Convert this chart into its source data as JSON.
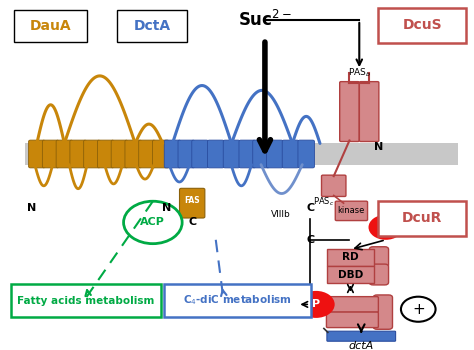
{
  "bg_color": "#ffffff",
  "membrane_color": "#c8c8c8",
  "daua_color": "#c8860a",
  "daua_ec": "#8B6008",
  "dcta_color": "#4472c4",
  "dcta_ec": "#2a4d9f",
  "pas_fill": "#d4888a",
  "pas_ec": "#b04040",
  "p_color": "#ee1111",
  "green_color": "#00aa44",
  "blue_color": "#4472c4",
  "label_daua": "DauA",
  "label_dcta": "DctA",
  "label_dcus": "DcuS",
  "label_dcur": "DcuR",
  "label_acp": "ACP",
  "label_fatty": "Fatty acids metabolism",
  "label_c4dic": "C$_4$-diC metabolism",
  "label_dcta_gene": "dctA",
  "label_pas_b": "PAS",
  "label_pas_b_sub": "b",
  "label_pas_c": "PAS",
  "label_pas_c_sub": "c",
  "label_kinase": "kinase",
  "label_rd": "RD",
  "label_dbd": "DBD",
  "label_viiib": "VIIIb",
  "figw": 4.74,
  "figh": 3.5,
  "dpi": 100
}
